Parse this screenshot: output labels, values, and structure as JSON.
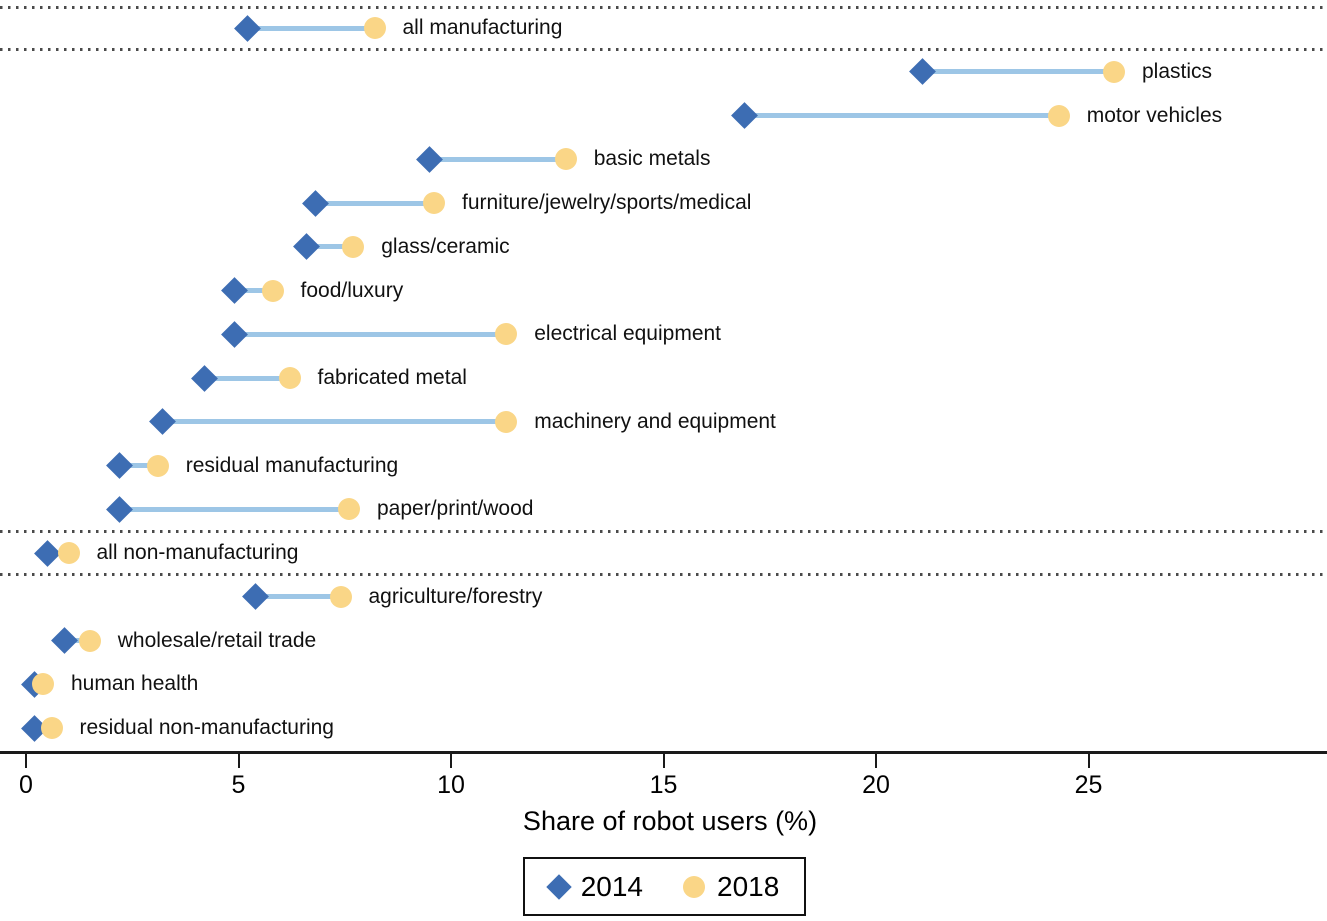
{
  "chart_data": {
    "type": "dumbbell",
    "title": "",
    "xlabel": "Share of robot users (%)",
    "x_ticks": [
      0,
      5,
      10,
      15,
      20,
      25
    ],
    "x_tick_labels": [
      "0",
      "5",
      "10",
      "15",
      "20",
      "25"
    ],
    "xlim": [
      0,
      30.6
    ],
    "grid": "none",
    "legend_position": "bottom-center",
    "connector_color": "#9DC6E6",
    "separator_color": "#4a4a4a",
    "series": [
      {
        "name": "2014",
        "marker": "diamond",
        "color": "#3D6DB3"
      },
      {
        "name": "2018",
        "marker": "circle",
        "color": "#FAD687"
      }
    ],
    "categories": [
      "all manufacturing",
      "plastics",
      "motor vehicles",
      "basic metals",
      "furniture/jewelry/sports/medical",
      "glass/ceramic",
      "food/luxury",
      "electrical equipment",
      "fabricated metal",
      "machinery and equipment",
      "residual manufacturing",
      "paper/print/wood",
      "all non-manufacturing",
      "agriculture/forestry",
      "wholesale/retail trade",
      "human health",
      "residual non-manufacturing"
    ],
    "values": {
      "2014": [
        5.2,
        21.1,
        16.9,
        9.5,
        6.8,
        6.6,
        4.9,
        4.9,
        4.2,
        3.2,
        2.2,
        2.2,
        0.5,
        5.4,
        0.9,
        0.2,
        0.2
      ],
      "2018": [
        8.2,
        25.6,
        24.3,
        12.7,
        9.6,
        7.7,
        5.8,
        11.3,
        6.2,
        11.3,
        3.1,
        7.6,
        1.0,
        7.4,
        1.5,
        0.4,
        0.6
      ]
    },
    "separators": [
      {
        "position": "above",
        "row": 0
      },
      {
        "position": "below",
        "row": 0
      },
      {
        "position": "above",
        "row": 12
      },
      {
        "position": "below",
        "row": 12
      }
    ]
  }
}
